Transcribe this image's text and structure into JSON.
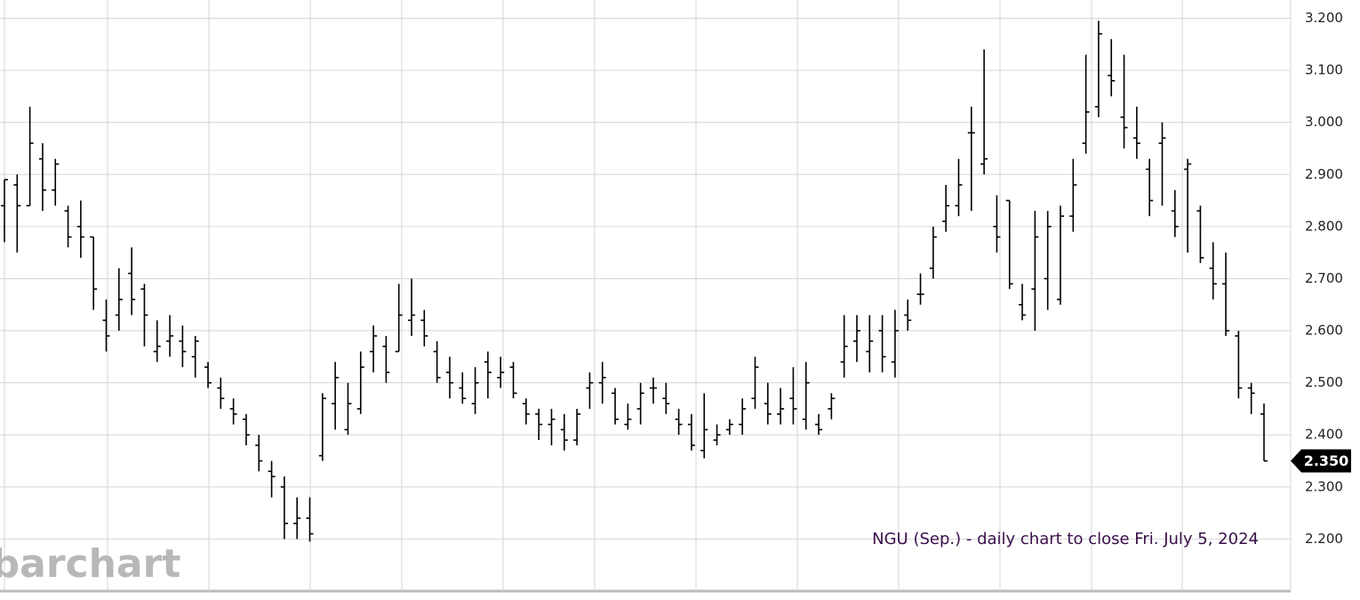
{
  "chart_data": {
    "type": "ohlc",
    "title": "NGU (Sep.) - daily chart to close Fri. July 5, 2024",
    "watermark": "barchart",
    "color": "#000000",
    "grid": true,
    "ylim": [
      2.1,
      3.235
    ],
    "yticks": [
      {
        "value": 2.2,
        "label": "2.200"
      },
      {
        "value": 2.3,
        "label": "2.300"
      },
      {
        "value": 2.4,
        "label": "2.400"
      },
      {
        "value": 2.5,
        "label": "2.500"
      },
      {
        "value": 2.6,
        "label": "2.600"
      },
      {
        "value": 2.7,
        "label": "2.700"
      },
      {
        "value": 2.8,
        "label": "2.800"
      },
      {
        "value": 2.9,
        "label": "2.900"
      },
      {
        "value": 3.0,
        "label": "3.000"
      },
      {
        "value": 3.1,
        "label": "3.100"
      },
      {
        "value": 3.2,
        "label": "3.200"
      }
    ],
    "last_price": {
      "value": 2.35,
      "label": "2.350"
    },
    "ohlc": [
      [
        2.84,
        2.89,
        2.77,
        2.89
      ],
      [
        2.88,
        2.9,
        2.75,
        2.84
      ],
      [
        2.84,
        3.03,
        2.84,
        2.96
      ],
      [
        2.93,
        2.96,
        2.83,
        2.87
      ],
      [
        2.87,
        2.93,
        2.84,
        2.92
      ],
      [
        2.83,
        2.84,
        2.76,
        2.78
      ],
      [
        2.8,
        2.85,
        2.74,
        2.78
      ],
      [
        2.78,
        2.78,
        2.64,
        2.68
      ],
      [
        2.62,
        2.66,
        2.56,
        2.59
      ],
      [
        2.63,
        2.72,
        2.6,
        2.66
      ],
      [
        2.71,
        2.76,
        2.63,
        2.66
      ],
      [
        2.68,
        2.69,
        2.57,
        2.63
      ],
      [
        2.56,
        2.62,
        2.54,
        2.57
      ],
      [
        2.58,
        2.63,
        2.55,
        2.59
      ],
      [
        2.58,
        2.61,
        2.53,
        2.56
      ],
      [
        2.55,
        2.59,
        2.51,
        2.58
      ],
      [
        2.53,
        2.54,
        2.49,
        2.5
      ],
      [
        2.49,
        2.51,
        2.45,
        2.47
      ],
      [
        2.45,
        2.47,
        2.42,
        2.44
      ],
      [
        2.43,
        2.44,
        2.38,
        2.4
      ],
      [
        2.38,
        2.4,
        2.33,
        2.35
      ],
      [
        2.33,
        2.35,
        2.28,
        2.32
      ],
      [
        2.3,
        2.32,
        2.2,
        2.23
      ],
      [
        2.23,
        2.28,
        2.2,
        2.24
      ],
      [
        2.24,
        2.28,
        2.195,
        2.21
      ],
      [
        2.36,
        2.48,
        2.35,
        2.47
      ],
      [
        2.46,
        2.54,
        2.41,
        2.51
      ],
      [
        2.41,
        2.5,
        2.4,
        2.46
      ],
      [
        2.45,
        2.56,
        2.44,
        2.53
      ],
      [
        2.56,
        2.61,
        2.52,
        2.59
      ],
      [
        2.57,
        2.59,
        2.5,
        2.52
      ],
      [
        2.56,
        2.69,
        2.56,
        2.63
      ],
      [
        2.62,
        2.7,
        2.59,
        2.63
      ],
      [
        2.62,
        2.64,
        2.57,
        2.59
      ],
      [
        2.56,
        2.58,
        2.5,
        2.51
      ],
      [
        2.52,
        2.55,
        2.47,
        2.5
      ],
      [
        2.49,
        2.52,
        2.46,
        2.47
      ],
      [
        2.46,
        2.53,
        2.44,
        2.5
      ],
      [
        2.54,
        2.56,
        2.47,
        2.52
      ],
      [
        2.51,
        2.55,
        2.49,
        2.52
      ],
      [
        2.53,
        2.54,
        2.47,
        2.48
      ],
      [
        2.46,
        2.47,
        2.42,
        2.44
      ],
      [
        2.44,
        2.45,
        2.39,
        2.42
      ],
      [
        2.42,
        2.45,
        2.38,
        2.43
      ],
      [
        2.41,
        2.44,
        2.37,
        2.39
      ],
      [
        2.39,
        2.45,
        2.38,
        2.44
      ],
      [
        2.49,
        2.52,
        2.45,
        2.5
      ],
      [
        2.5,
        2.54,
        2.46,
        2.51
      ],
      [
        2.48,
        2.49,
        2.42,
        2.43
      ],
      [
        2.42,
        2.46,
        2.41,
        2.43
      ],
      [
        2.45,
        2.5,
        2.42,
        2.48
      ],
      [
        2.49,
        2.51,
        2.46,
        2.49
      ],
      [
        2.47,
        2.5,
        2.44,
        2.46
      ],
      [
        2.43,
        2.45,
        2.4,
        2.42
      ],
      [
        2.42,
        2.44,
        2.37,
        2.38
      ],
      [
        2.37,
        2.48,
        2.355,
        2.41
      ],
      [
        2.39,
        2.42,
        2.38,
        2.4
      ],
      [
        2.41,
        2.43,
        2.4,
        2.42
      ],
      [
        2.42,
        2.47,
        2.4,
        2.45
      ],
      [
        2.47,
        2.55,
        2.45,
        2.53
      ],
      [
        2.46,
        2.5,
        2.42,
        2.44
      ],
      [
        2.44,
        2.49,
        2.42,
        2.45
      ],
      [
        2.47,
        2.53,
        2.42,
        2.45
      ],
      [
        2.43,
        2.54,
        2.41,
        2.5
      ],
      [
        2.42,
        2.44,
        2.4,
        2.41
      ],
      [
        2.45,
        2.48,
        2.43,
        2.47
      ],
      [
        2.54,
        2.63,
        2.51,
        2.57
      ],
      [
        2.58,
        2.63,
        2.54,
        2.6
      ],
      [
        2.56,
        2.63,
        2.52,
        2.58
      ],
      [
        2.6,
        2.63,
        2.52,
        2.55
      ],
      [
        2.54,
        2.64,
        2.51,
        2.6
      ],
      [
        2.63,
        2.66,
        2.6,
        2.62
      ],
      [
        2.67,
        2.71,
        2.65,
        2.67
      ],
      [
        2.72,
        2.8,
        2.7,
        2.78
      ],
      [
        2.81,
        2.88,
        2.79,
        2.84
      ],
      [
        2.84,
        2.93,
        2.82,
        2.88
      ],
      [
        2.98,
        3.03,
        2.83,
        2.98
      ],
      [
        2.92,
        3.14,
        2.9,
        2.93
      ],
      [
        2.8,
        2.86,
        2.75,
        2.78
      ],
      [
        2.85,
        2.85,
        2.68,
        2.69
      ],
      [
        2.65,
        2.69,
        2.62,
        2.63
      ],
      [
        2.68,
        2.83,
        2.6,
        2.78
      ],
      [
        2.7,
        2.83,
        2.64,
        2.8
      ],
      [
        2.66,
        2.84,
        2.65,
        2.82
      ],
      [
        2.82,
        2.93,
        2.79,
        2.88
      ],
      [
        2.96,
        3.13,
        2.94,
        3.02
      ],
      [
        3.03,
        3.195,
        3.01,
        3.17
      ],
      [
        3.09,
        3.16,
        3.05,
        3.08
      ],
      [
        3.01,
        3.13,
        2.95,
        2.99
      ],
      [
        2.97,
        3.03,
        2.93,
        2.96
      ],
      [
        2.91,
        2.93,
        2.82,
        2.85
      ],
      [
        2.96,
        3.0,
        2.84,
        2.97
      ],
      [
        2.83,
        2.87,
        2.78,
        2.8
      ],
      [
        2.91,
        2.93,
        2.75,
        2.92
      ],
      [
        2.83,
        2.84,
        2.73,
        2.74
      ],
      [
        2.72,
        2.77,
        2.66,
        2.69
      ],
      [
        2.69,
        2.75,
        2.59,
        2.6
      ],
      [
        2.59,
        2.6,
        2.47,
        2.49
      ],
      [
        2.49,
        2.5,
        2.44,
        2.48
      ],
      [
        2.44,
        2.46,
        2.35,
        2.35
      ]
    ]
  }
}
